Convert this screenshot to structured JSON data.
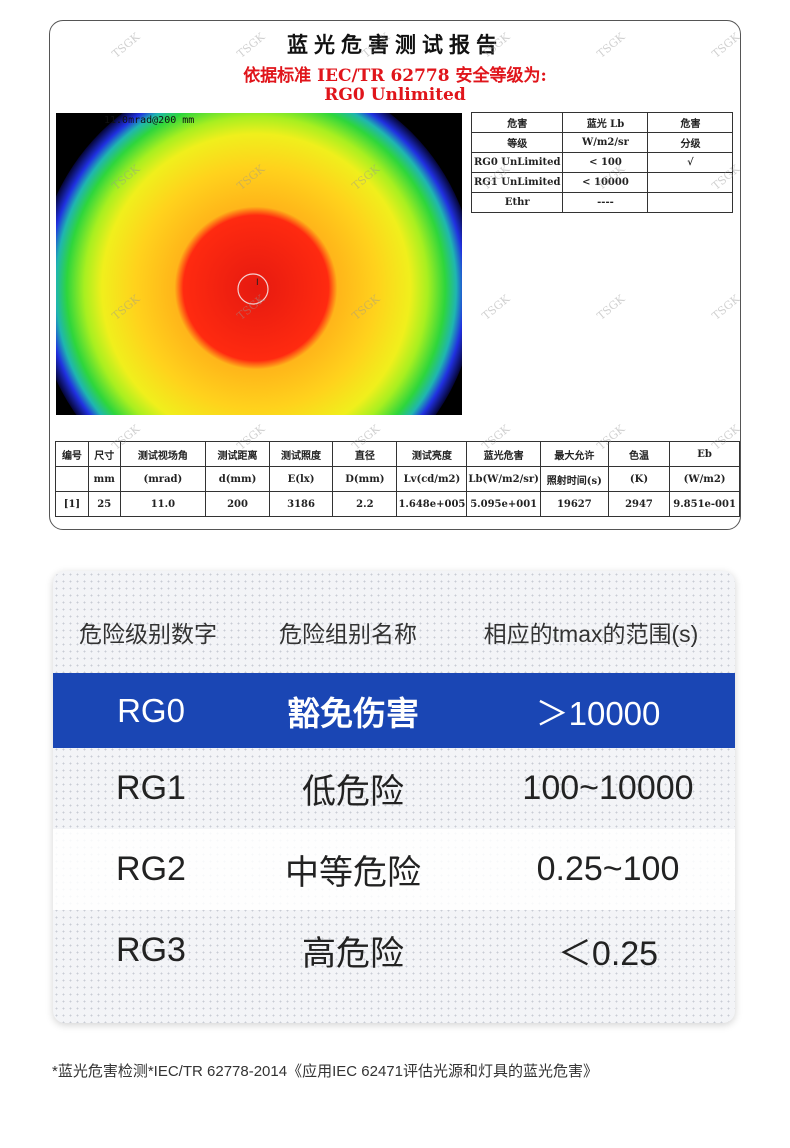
{
  "report": {
    "title": "蓝光危害测试报告",
    "subtitle": "依据标准 IEC/TR 62778 安全等级为:",
    "result": "RG0 Unlimited",
    "image_label": "11.0mrad@200 mm",
    "watermark": "TSGK",
    "rg_table": {
      "header": [
        [
          "危害",
          "蓝光 Lb",
          "危害"
        ],
        [
          "等级",
          "W/m2/sr",
          "分级"
        ]
      ],
      "rows": [
        [
          "RG0 UnLimited",
          "< 100",
          "√"
        ],
        [
          "RG1 UnLimited",
          "< 10000",
          ""
        ],
        [
          "Ethr",
          "----",
          ""
        ]
      ]
    },
    "measure_table": {
      "header1": [
        "编号",
        "尺寸",
        "测试视场角",
        "测试距离",
        "测试照度",
        "直径",
        "测试亮度",
        "蓝光危害",
        "最大允许",
        "色温",
        "Eb"
      ],
      "header2": [
        "",
        "mm",
        "(mrad)",
        "d(mm)",
        "E(lx)",
        "D(mm)",
        "Lv(cd/m2)",
        "Lb(W/m2/sr)",
        "照射时间(s)",
        "(K)",
        "(W/m2)"
      ],
      "row": [
        "[1]",
        "25",
        "11.0",
        "200",
        "3186",
        "2.2",
        "1.648e+005",
        "5.095e+001",
        "19627",
        "2947",
        "9.851e-001"
      ]
    }
  },
  "classes": {
    "header": [
      "危险级别数字",
      "危险组别名称",
      "相应的tmax的范围(s)"
    ],
    "rows": [
      {
        "code": "RG0",
        "name": "豁免伤害",
        "range": "＞10000"
      },
      {
        "code": "RG1",
        "name": "低危险",
        "range": "100~10000"
      },
      {
        "code": "RG2",
        "name": "中等危险",
        "range": "0.25~100"
      },
      {
        "code": "RG3",
        "name": "高危险",
        "range": "＜0.25"
      }
    ],
    "highlight_color": "#1a46b4"
  },
  "footnote": "*蓝光危害检测*IEC/TR 62778-2014《应用IEC 62471评估光源和灯具的蓝光危害》"
}
